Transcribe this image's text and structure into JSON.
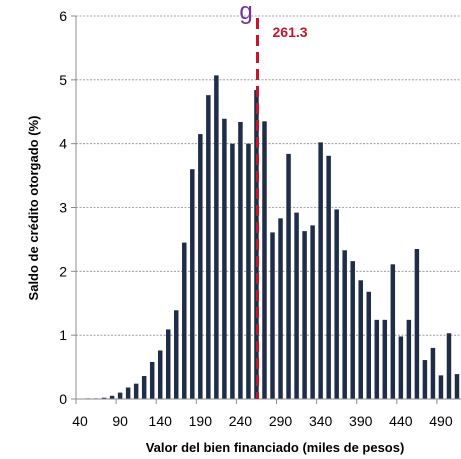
{
  "chart_data": {
    "type": "bar",
    "title_fragment": "g",
    "xlabel": "Valor del bien financiado (miles de pesos)",
    "ylabel": "Saldo de crédito otorgado (%)",
    "ylim": [
      0,
      6
    ],
    "yticks": [
      0,
      1,
      2,
      3,
      4,
      5,
      6
    ],
    "x_tick_labels": [
      "40",
      "90",
      "140",
      "190",
      "240",
      "290",
      "340",
      "390",
      "440",
      "490"
    ],
    "x_start": 40,
    "x_step": 10,
    "x_tick_every": 5,
    "values": [
      0.0,
      0.01,
      0.01,
      0.02,
      0.05,
      0.1,
      0.18,
      0.24,
      0.36,
      0.58,
      0.76,
      1.09,
      1.39,
      2.45,
      3.6,
      4.15,
      4.76,
      5.07,
      4.39,
      4.0,
      4.34,
      4.0,
      4.84,
      4.35,
      2.61,
      2.83,
      3.84,
      2.92,
      2.63,
      2.72,
      4.02,
      3.81,
      2.97,
      2.33,
      2.16,
      1.86,
      1.68,
      1.24,
      1.24,
      2.11,
      0.98,
      1.24,
      2.35,
      0.61,
      0.8,
      0.37,
      1.03,
      0.39
    ],
    "grid": true,
    "bar_color": "#1f2e46",
    "reference_line": {
      "x": 261.3,
      "label": "261.3",
      "color": "#c0182b",
      "style": "dashed"
    },
    "title_color": "#7030a0"
  }
}
